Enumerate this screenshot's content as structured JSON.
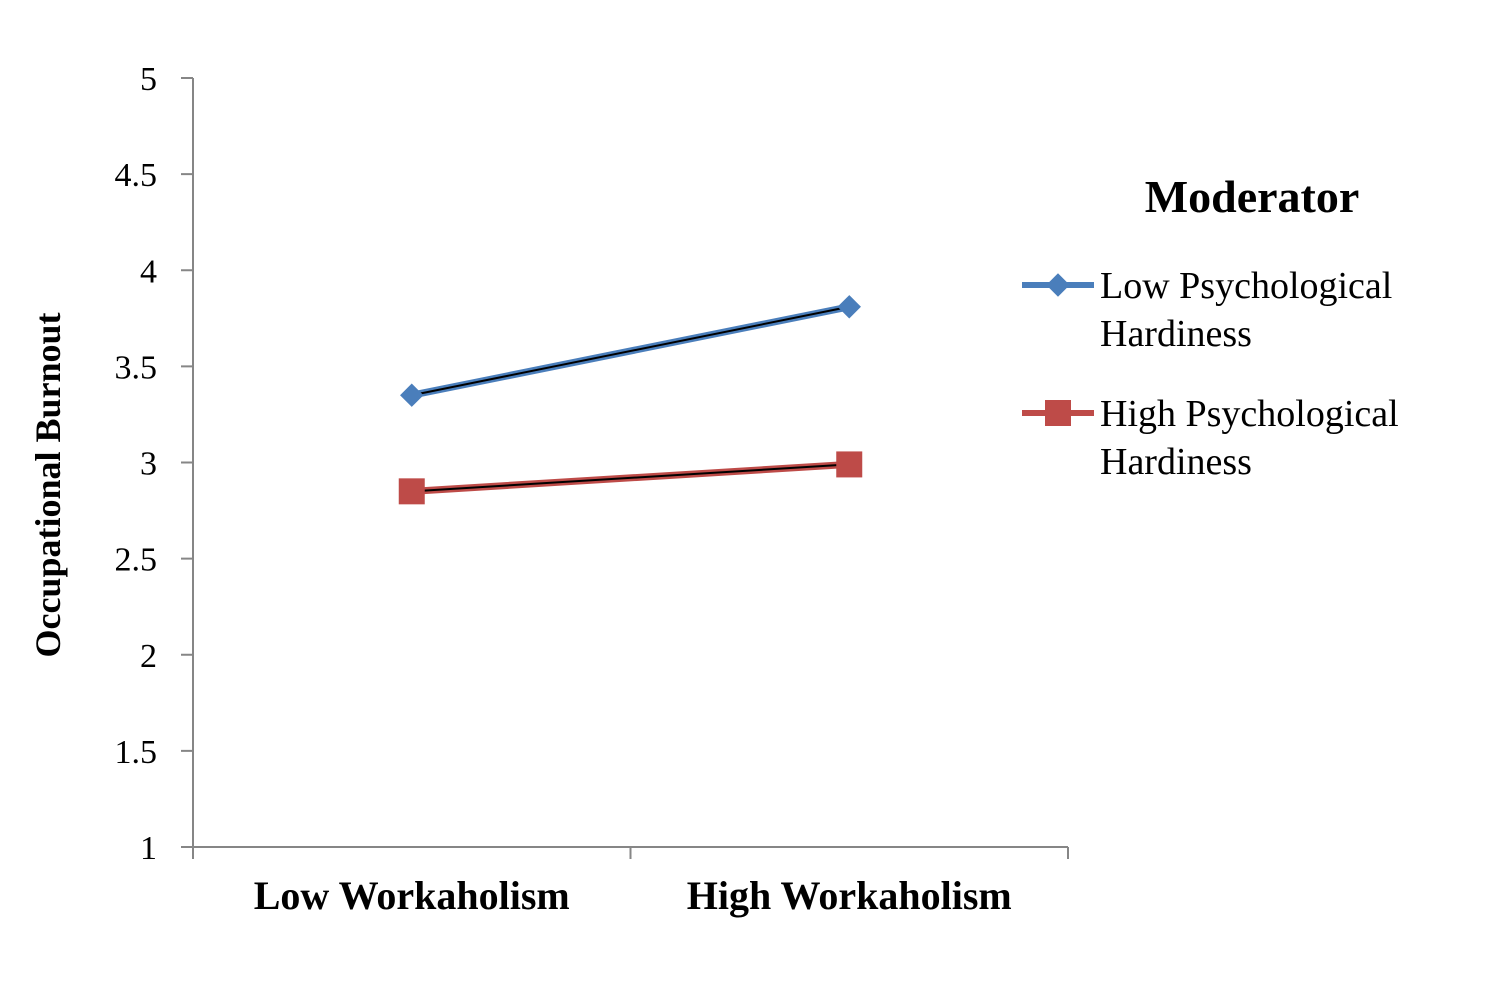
{
  "chart_data": {
    "type": "line",
    "categories": [
      "Low Workaholism",
      "High Workaholism"
    ],
    "ylabel": "Occupational Burnout",
    "xlabel": "",
    "ylim": [
      1,
      5
    ],
    "yticks": [
      "1",
      "1.5",
      "2",
      "2.5",
      "3",
      "3.5",
      "4",
      "4.5",
      "5"
    ],
    "grid": false,
    "legend": {
      "title": "Moderator",
      "placement": "right",
      "entries": [
        {
          "lines": [
            "Low Psychological",
            "Hardiness"
          ]
        },
        {
          "lines": [
            "High Psychological",
            "Hardiness"
          ]
        }
      ]
    },
    "series": [
      {
        "name": "Low Psychological Hardiness",
        "values": [
          3.35,
          3.81
        ],
        "color": "#4a7ebb",
        "marker": "diamond"
      },
      {
        "name": "High Psychological Hardiness",
        "values": [
          2.85,
          2.99
        ],
        "color": "#be4b48",
        "marker": "square"
      }
    ]
  }
}
